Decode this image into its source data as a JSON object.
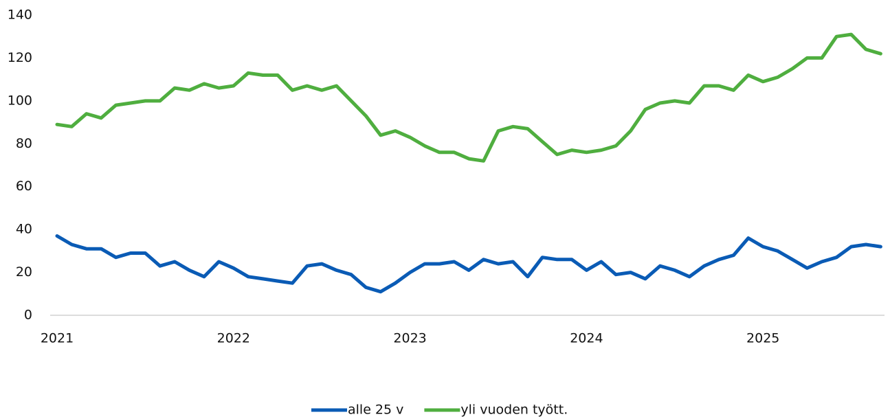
{
  "chart_data": {
    "type": "line",
    "categories": [
      "2021",
      null,
      null,
      null,
      null,
      null,
      null,
      null,
      null,
      null,
      null,
      null,
      "2022",
      null,
      null,
      null,
      null,
      null,
      null,
      null,
      null,
      null,
      null,
      null,
      "2023",
      null,
      null,
      null,
      null,
      null,
      null,
      null,
      null,
      null,
      null,
      null,
      "2024",
      null,
      null,
      null,
      null,
      null,
      null,
      null,
      null,
      null,
      null,
      null,
      "2025",
      null,
      null,
      null,
      null,
      null,
      null,
      null,
      null
    ],
    "series": [
      {
        "name": "alle 25 v",
        "color": "#0a5bb5",
        "values": [
          37,
          33,
          31,
          31,
          27,
          29,
          29,
          23,
          25,
          21,
          18,
          25,
          22,
          18,
          17,
          16,
          15,
          23,
          24,
          21,
          19,
          13,
          11,
          15,
          20,
          24,
          24,
          25,
          21,
          26,
          24,
          25,
          18,
          27,
          26,
          26,
          21,
          25,
          19,
          20,
          17,
          23,
          21,
          18,
          23,
          26,
          28,
          36,
          32,
          30,
          26,
          22,
          25,
          27,
          32,
          33,
          32
        ]
      },
      {
        "name": "yli vuoden tyött.",
        "color": "#4fae3f",
        "values": [
          89,
          88,
          94,
          92,
          98,
          99,
          100,
          100,
          106,
          105,
          108,
          106,
          107,
          113,
          112,
          112,
          105,
          107,
          105,
          107,
          100,
          93,
          84,
          86,
          83,
          79,
          76,
          76,
          73,
          72,
          86,
          88,
          87,
          81,
          75,
          77,
          76,
          77,
          79,
          86,
          96,
          99,
          100,
          99,
          107,
          107,
          105,
          112,
          109,
          111,
          115,
          120,
          120,
          130,
          131,
          124,
          122
        ]
      }
    ],
    "ylim": [
      0,
      140
    ],
    "yticks": [
      0,
      20,
      40,
      60,
      80,
      100,
      120,
      140
    ],
    "legend": "bottom"
  }
}
